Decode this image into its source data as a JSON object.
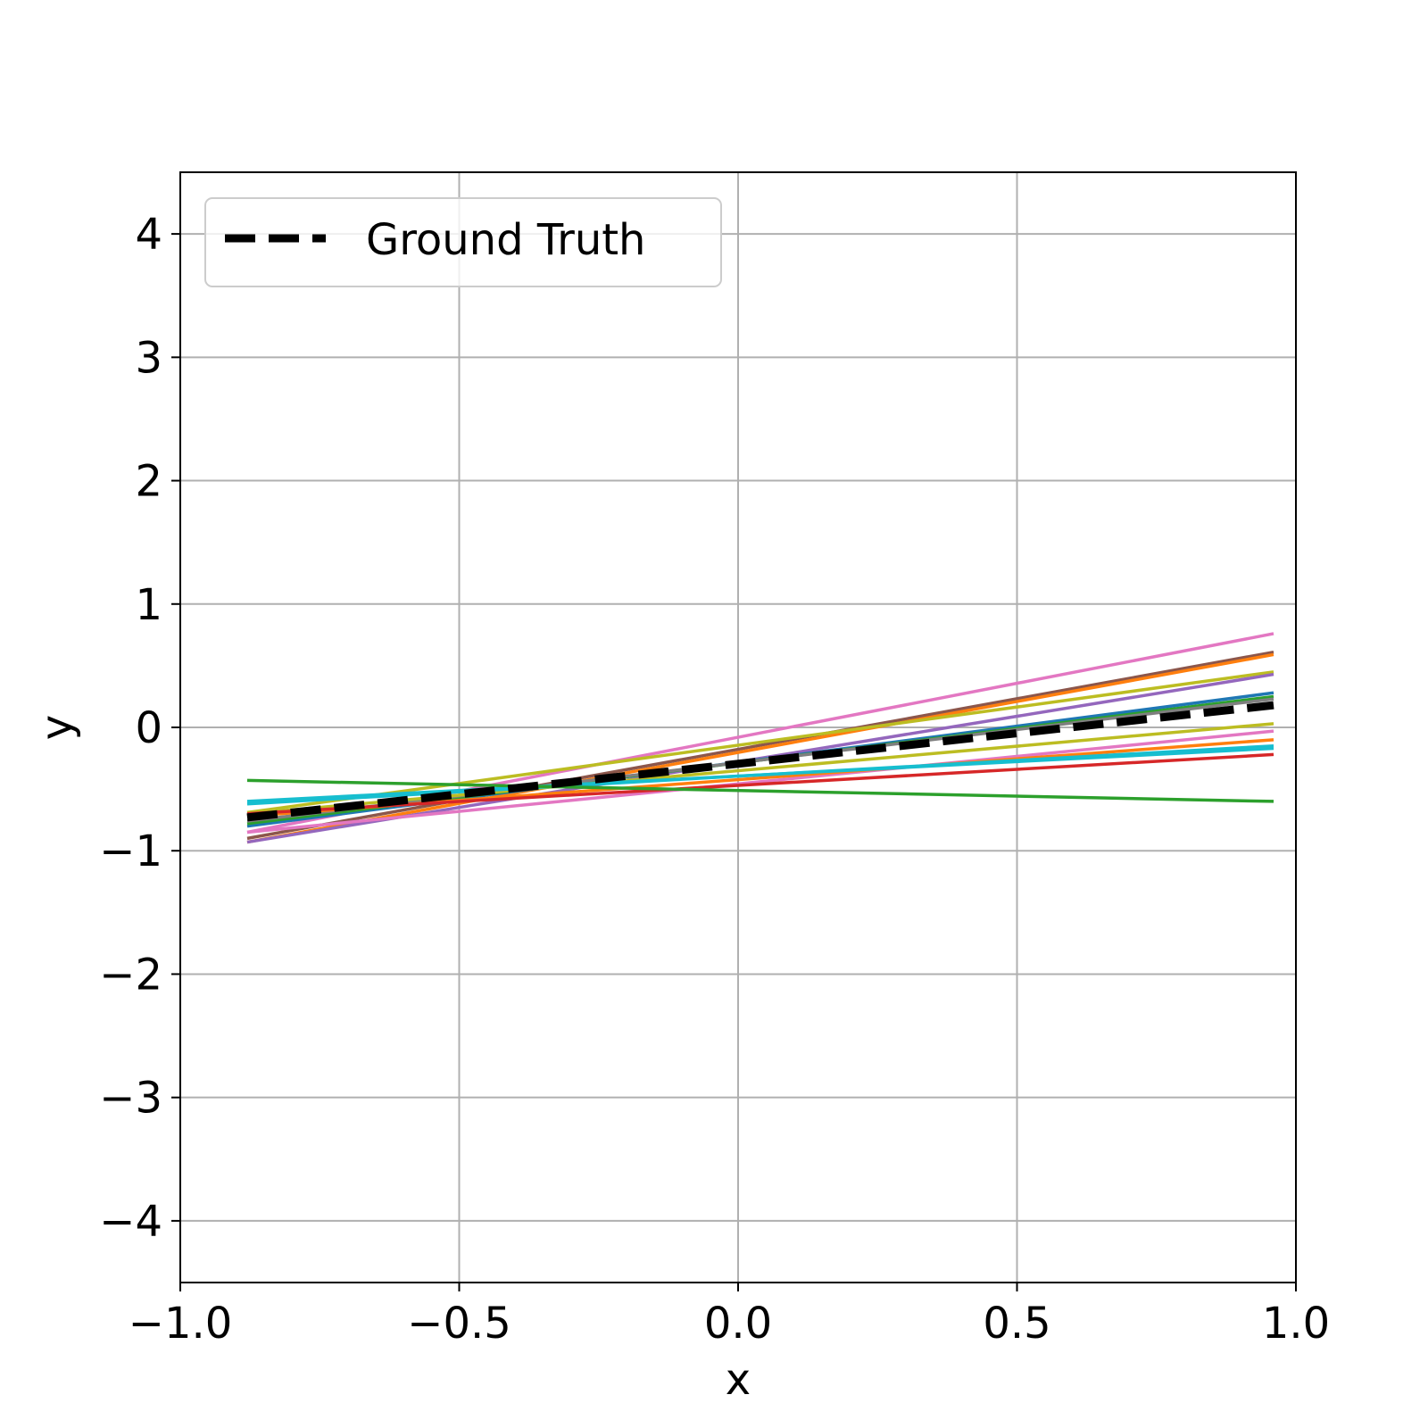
{
  "chart_data": {
    "type": "line",
    "title": "",
    "xlabel": "x",
    "ylabel": "y",
    "xlim": [
      -1.0,
      1.0
    ],
    "ylim": [
      -4.5,
      4.5
    ],
    "xticks": [
      -1.0,
      -0.5,
      0.0,
      0.5,
      1.0
    ],
    "xtick_labels": [
      "−1.0",
      "−0.5",
      "0.0",
      "0.5",
      "1.0"
    ],
    "yticks": [
      -4,
      -3,
      -2,
      -1,
      0,
      1,
      2,
      3,
      4
    ],
    "ytick_labels": [
      "−4",
      "−3",
      "−2",
      "−1",
      "0",
      "1",
      "2",
      "3",
      "4"
    ],
    "grid": true,
    "legend": {
      "position": "top-left",
      "entries": [
        "Ground Truth"
      ]
    },
    "series": [
      {
        "color": "#e377c2",
        "x": [
          -0.88,
          0.96
        ],
        "y": [
          -0.85,
          0.76
        ]
      },
      {
        "color": "#8c564b",
        "x": [
          -0.88,
          0.96
        ],
        "y": [
          -0.9,
          0.61
        ]
      },
      {
        "color": "#ff7f0e",
        "x": [
          -0.88,
          0.96
        ],
        "y": [
          -0.93,
          0.59
        ]
      },
      {
        "color": "#bcbd22",
        "x": [
          -0.88,
          0.96
        ],
        "y": [
          -0.69,
          0.45
        ]
      },
      {
        "color": "#9467bd",
        "x": [
          -0.88,
          0.96
        ],
        "y": [
          -0.93,
          0.43
        ]
      },
      {
        "color": "#1f77b4",
        "x": [
          -0.88,
          0.96
        ],
        "y": [
          -0.8,
          0.28
        ]
      },
      {
        "color": "#2ca02c",
        "x": [
          -0.88,
          0.96
        ],
        "y": [
          -0.78,
          0.25
        ]
      },
      {
        "color": "#7f7f7f",
        "x": [
          -0.88,
          0.96
        ],
        "y": [
          -0.76,
          0.23
        ]
      },
      {
        "color": "#bcbd22",
        "x": [
          -0.88,
          0.96
        ],
        "y": [
          -0.7,
          0.03
        ]
      },
      {
        "color": "#e377c2",
        "x": [
          -0.88,
          0.96
        ],
        "y": [
          -0.85,
          -0.03
        ]
      },
      {
        "color": "#ff7f0e",
        "x": [
          -0.88,
          0.96
        ],
        "y": [
          -0.72,
          -0.1
        ]
      },
      {
        "color": "#17becf",
        "x": [
          -0.88,
          0.96
        ],
        "y": [
          -0.62,
          -0.15
        ]
      },
      {
        "color": "#17becf",
        "x": [
          -0.88,
          0.96
        ],
        "y": [
          -0.6,
          -0.17
        ]
      },
      {
        "color": "#d62728",
        "x": [
          -0.88,
          0.96
        ],
        "y": [
          -0.7,
          -0.22
        ]
      },
      {
        "color": "#2ca02c",
        "x": [
          -0.88,
          0.96
        ],
        "y": [
          -0.43,
          -0.6
        ]
      }
    ],
    "ground_truth": {
      "name": "Ground Truth",
      "color": "#000000",
      "x": [
        -0.88,
        0.96
      ],
      "y": [
        -0.73,
        0.18
      ]
    }
  }
}
